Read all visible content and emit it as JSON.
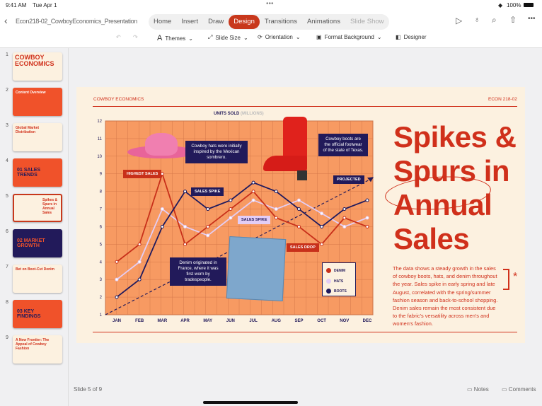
{
  "status": {
    "time": "9:41 AM",
    "date": "Tue Apr 1",
    "battery": "100%"
  },
  "document": {
    "title": "Econ218-02_CowboyEconomics_Presentation"
  },
  "tabs": [
    "Home",
    "Insert",
    "Draw",
    "Design",
    "Transitions",
    "Animations",
    "Slide Show"
  ],
  "active_tab": "Design",
  "toolbar": {
    "themes": "Themes",
    "slide_size": "Slide Size",
    "orientation": "Orientation",
    "format_background": "Format Background",
    "designer": "Designer"
  },
  "thumbnails": [
    {
      "num": "1",
      "text": "COWBOY ECONOMICS"
    },
    {
      "num": "2",
      "text": "Content Overview"
    },
    {
      "num": "3",
      "text": "Global Market Distribution"
    },
    {
      "num": "4",
      "text": "01 SALES TRENDS"
    },
    {
      "num": "5",
      "text": "Spikes & Spurs in Annual Sales"
    },
    {
      "num": "6",
      "text": "02 MARKET GROWTH"
    },
    {
      "num": "7",
      "text": "Bet on Boot-Cut Denim"
    },
    {
      "num": "8",
      "text": "03 KEY FINDINGS"
    },
    {
      "num": "9",
      "text": "A New Frontier: The Appeal of Cowboy Fashion"
    }
  ],
  "slide": {
    "header_left": "COWBOY ECONOMICS",
    "header_right": "ECON 218-02",
    "title_lines": [
      "Spikes &",
      "Spurs in",
      "Annual",
      "Sales"
    ],
    "body": "The data shows a steady growth in the sales of cowboy boots, hats, and denim throughout the year. Sales spike in early spring and late August, correlated with the spring/summer fashion season and back-to-school shopping. Denim sales remain the most consistent due to the fabric's versatility across men's and women's fashion.",
    "callouts": {
      "hat": "Cowboy hats were initially inspired by the Mexican sombrero.",
      "boot": "Cowboy boots are the official footwear of the state of Texas.",
      "denim": "Denim originated in France, where it was first worn by tradespeople."
    },
    "tags": {
      "highest": "HIGHEST SALES",
      "spike1": "SALES SPIKE",
      "spike2": "SALES SPIKE",
      "drop": "SALES DROP",
      "projected": "PROJECTED"
    }
  },
  "chart_data": {
    "type": "line",
    "title": "UNITS SOLD",
    "title_unit": "(MILLIONS)",
    "categories": [
      "JAN",
      "FEB",
      "MAR",
      "APR",
      "MAY",
      "JUN",
      "JUL",
      "AUG",
      "SEP",
      "OCT",
      "NOV",
      "DEC"
    ],
    "ylim": [
      1,
      12
    ],
    "yticks": [
      1,
      2,
      3,
      4,
      5,
      6,
      7,
      8,
      9,
      10,
      11,
      12
    ],
    "grid": true,
    "legend": "bottom-right",
    "series": [
      {
        "name": "DENIM",
        "color": "#c8301a",
        "values": [
          4,
          5,
          9,
          5,
          6,
          7,
          8,
          6.5,
          6,
          5,
          6.5,
          6
        ]
      },
      {
        "name": "HATS",
        "color": "#e3cdf5",
        "values": [
          3,
          4,
          7,
          6,
          5.5,
          6.5,
          7.5,
          7,
          7.5,
          6.75,
          6,
          6.5
        ]
      },
      {
        "name": "BOOTS",
        "color": "#1f1a5e",
        "values": [
          2,
          3,
          6,
          8,
          7,
          7.5,
          8.5,
          8,
          7,
          6,
          7,
          7.5
        ]
      }
    ],
    "trend": {
      "from": 1,
      "to": 8.7
    }
  },
  "footer": {
    "slide_counter": "Slide 5 of 9",
    "notes": "Notes",
    "comments": "Comments"
  }
}
